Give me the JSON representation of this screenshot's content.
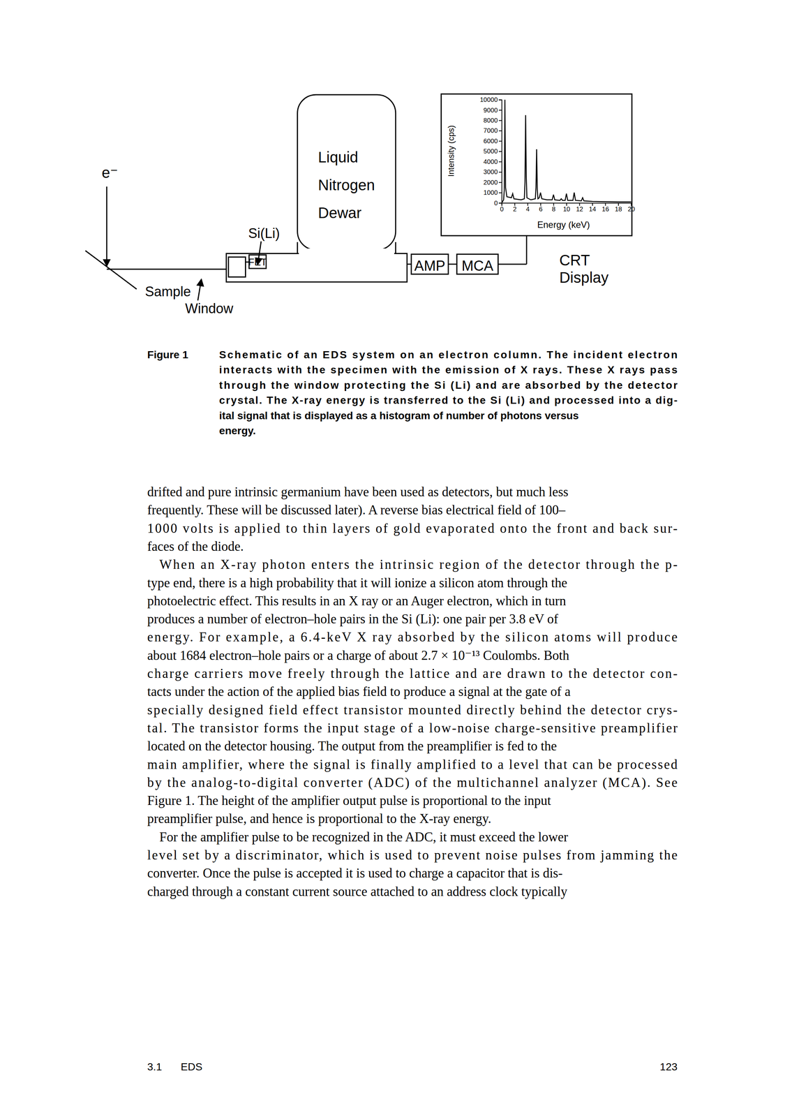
{
  "figure": {
    "labels": {
      "electron": "e⁻",
      "sample": "Sample",
      "window": "Window",
      "detector": "Si(Li)",
      "dewar": [
        "Liquid",
        "Nitrogen",
        "Dewar"
      ],
      "fet": "FET",
      "amp": "AMP",
      "mca": "MCA",
      "display": [
        "CRT",
        "Display"
      ]
    },
    "caption": {
      "label": "Figure 1",
      "lines": [
        "Schematic of an EDS system on an electron column. The incident electron",
        "interacts with the specimen with the emission of X rays. These X rays pass",
        "through the window protecting the Si (Li) and are absorbed by the detector",
        "crystal. The X-ray energy is transferred to the Si (Li) and processed into a dig-",
        "ital signal that is displayed as a histogram of number of photons versus",
        "energy."
      ]
    }
  },
  "chart_data": {
    "type": "line",
    "color": "#000000",
    "xlabel": "Energy (keV)",
    "ylabel": "Intensity (cps)",
    "x": [
      0,
      0.3,
      0.4,
      0.5,
      0.6,
      0.8,
      1.5,
      1.7,
      1.9,
      3.0,
      3.5,
      3.6,
      3.7,
      3.8,
      3.9,
      4.5,
      5.2,
      5.3,
      5.4,
      5.5,
      5.6,
      5.8,
      6.0,
      6.2,
      7.0,
      7.8,
      8.0,
      8.2,
      9.0,
      9.2,
      9.4,
      9.8,
      10.0,
      10.2,
      11.0,
      11.2,
      11.4,
      12.3,
      12.5,
      12.7,
      14,
      16,
      18,
      20
    ],
    "values": [
      0,
      300,
      1200,
      10000,
      1500,
      600,
      500,
      900,
      400,
      300,
      400,
      2000,
      8500,
      2500,
      500,
      300,
      400,
      1500,
      5200,
      1300,
      400,
      500,
      1000,
      400,
      300,
      300,
      800,
      300,
      250,
      400,
      250,
      250,
      900,
      250,
      250,
      1000,
      250,
      200,
      500,
      200,
      150,
      120,
      100,
      100
    ],
    "xlim": [
      0,
      20
    ],
    "xticks": [
      0,
      2,
      4,
      6,
      8,
      10,
      12,
      14,
      16,
      18,
      20
    ],
    "ylim": [
      0,
      10000
    ],
    "yticks": [
      0,
      1000,
      2000,
      3000,
      4000,
      5000,
      6000,
      7000,
      8000,
      9000,
      10000
    ],
    "grid": false
  },
  "body": {
    "paragraphs": [
      [
        "drifted and pure intrinsic germanium have been used as detectors, but much less",
        "frequently. These will be discussed later). A reverse bias electrical field of 100–",
        "1000 volts is applied to thin layers of gold evaporated onto the front and back sur-",
        "faces of the diode."
      ],
      [
        "When an X-ray photon enters the intrinsic region of the detector through the p-",
        "type end, there is a high probability that it will ionize a silicon atom through the",
        "photoelectric effect. This results in an X ray or an Auger electron, which in turn",
        "produces a number of electron–hole pairs in the Si (Li): one pair per 3.8 eV of",
        "energy. For example, a 6.4-keV X ray absorbed by the silicon atoms will produce",
        "about 1684 electron–hole pairs or a charge of about 2.7 × 10⁻¹³ Coulombs. Both",
        "charge carriers move freely through the lattice and are drawn to the detector con-",
        "tacts under the action of the applied bias field to produce a signal at the gate of a",
        "specially designed field effect transistor mounted directly behind the detector crys-",
        "tal. The transistor forms the input stage of a low-noise charge-sensitive preamplifier",
        "located on the detector housing. The output from the preamplifier is fed to the",
        "main amplifier, where the signal is finally amplified to a level that can be processed",
        "by the analog-to-digital converter (ADC) of the multichannel analyzer (MCA). See",
        "Figure 1. The height of the amplifier output pulse is proportional to the input",
        "preamplifier pulse, and hence is proportional to the X-ray energy."
      ],
      [
        "For the amplifier pulse to be recognized in the ADC, it must exceed the lower",
        "level set by a discriminator, which is used to prevent noise pulses from jamming the",
        "converter. Once the pulse is accepted it is used to charge a capacitor that is dis-",
        "charged through a constant current source attached to an address clock typically"
      ]
    ]
  },
  "footer": {
    "section": "3.1",
    "title": "EDS",
    "page": "123"
  }
}
